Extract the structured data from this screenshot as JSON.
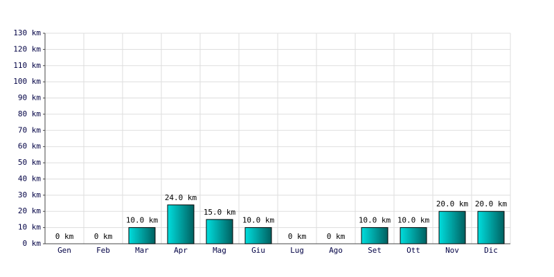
{
  "chart_data": {
    "type": "bar",
    "categories": [
      "Gen",
      "Feb",
      "Mar",
      "Apr",
      "Mag",
      "Giu",
      "Lug",
      "Ago",
      "Set",
      "Ott",
      "Nov",
      "Dic"
    ],
    "values": [
      0,
      0,
      10,
      24,
      15,
      10,
      0,
      0,
      10,
      10,
      20,
      20
    ],
    "value_labels": [
      "0 km",
      "0 km",
      "10.0 km",
      "24.0 km",
      "15.0 km",
      "10.0 km",
      "0 km",
      "0 km",
      "10.0 km",
      "10.0 km",
      "20.0 km",
      "20.0 km"
    ],
    "color": "#00dede",
    "ylim": [
      0,
      130
    ],
    "yticks": [
      {
        "value": 0,
        "label": "0 km"
      },
      {
        "value": 10,
        "label": "10 km"
      },
      {
        "value": 20,
        "label": "20 km"
      },
      {
        "value": 30,
        "label": "30 km"
      },
      {
        "value": 40,
        "label": "40 km"
      },
      {
        "value": 50,
        "label": "50 km"
      },
      {
        "value": 60,
        "label": "60 km"
      },
      {
        "value": 70,
        "label": "70 km"
      },
      {
        "value": 80,
        "label": "80 km"
      },
      {
        "value": 90,
        "label": "90 km"
      },
      {
        "value": 100,
        "label": "100 km"
      },
      {
        "value": 110,
        "label": "110 km"
      },
      {
        "value": 120,
        "label": "120 km"
      },
      {
        "value": 130,
        "label": "130 km"
      }
    ],
    "grid": true
  }
}
